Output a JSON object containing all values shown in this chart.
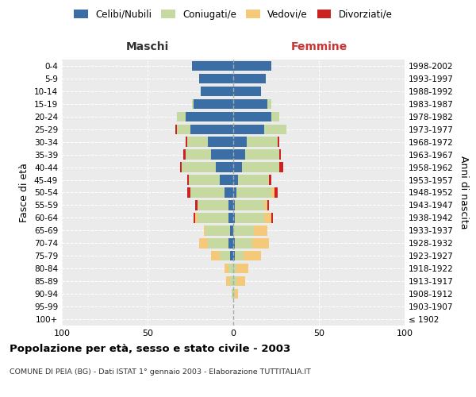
{
  "age_groups": [
    "100+",
    "95-99",
    "90-94",
    "85-89",
    "80-84",
    "75-79",
    "70-74",
    "65-69",
    "60-64",
    "55-59",
    "50-54",
    "45-49",
    "40-44",
    "35-39",
    "30-34",
    "25-29",
    "20-24",
    "15-19",
    "10-14",
    "5-9",
    "0-4"
  ],
  "birth_years": [
    "≤ 1902",
    "1903-1907",
    "1908-1912",
    "1913-1917",
    "1918-1922",
    "1923-1927",
    "1928-1932",
    "1933-1937",
    "1938-1942",
    "1943-1947",
    "1948-1952",
    "1953-1957",
    "1958-1962",
    "1963-1967",
    "1968-1972",
    "1973-1977",
    "1978-1982",
    "1983-1987",
    "1988-1992",
    "1993-1997",
    "1998-2002"
  ],
  "maschi": {
    "celibi": [
      0,
      0,
      0,
      0,
      0,
      2,
      3,
      2,
      3,
      3,
      5,
      8,
      10,
      13,
      15,
      25,
      28,
      23,
      19,
      20,
      24
    ],
    "coniugati": [
      0,
      0,
      1,
      2,
      3,
      6,
      12,
      14,
      18,
      18,
      20,
      18,
      20,
      15,
      12,
      8,
      5,
      1,
      0,
      0,
      0
    ],
    "vedovi": [
      0,
      0,
      0,
      2,
      2,
      5,
      5,
      1,
      1,
      0,
      0,
      0,
      0,
      0,
      0,
      0,
      0,
      0,
      0,
      0,
      0
    ],
    "divorziati": [
      0,
      0,
      0,
      0,
      0,
      0,
      0,
      0,
      1,
      1,
      2,
      1,
      1,
      1,
      1,
      1,
      0,
      0,
      0,
      0,
      0
    ]
  },
  "femmine": {
    "nubili": [
      0,
      0,
      0,
      0,
      0,
      1,
      1,
      0,
      1,
      1,
      2,
      3,
      5,
      7,
      8,
      18,
      22,
      20,
      16,
      19,
      22
    ],
    "coniugate": [
      0,
      0,
      1,
      2,
      2,
      5,
      10,
      12,
      17,
      17,
      20,
      18,
      22,
      20,
      18,
      13,
      5,
      2,
      0,
      0,
      0
    ],
    "vedove": [
      0,
      0,
      2,
      5,
      7,
      10,
      10,
      8,
      4,
      2,
      2,
      0,
      0,
      0,
      0,
      0,
      0,
      0,
      0,
      0,
      0
    ],
    "divorziate": [
      0,
      0,
      0,
      0,
      0,
      0,
      0,
      0,
      1,
      1,
      2,
      1,
      2,
      1,
      1,
      0,
      0,
      0,
      0,
      0,
      0
    ]
  },
  "colors": {
    "celibi_nubili": "#3a6ea5",
    "coniugati": "#c5d9a0",
    "vedovi": "#f5c97a",
    "divorziati": "#cc2222"
  },
  "title": "Popolazione per età, sesso e stato civile - 2003",
  "subtitle": "COMUNE DI PEIA (BG) - Dati ISTAT 1° gennaio 2003 - Elaborazione TUTTITALIA.IT",
  "xlabel_left": "Maschi",
  "xlabel_right": "Femmine",
  "ylabel_left": "Fasce di età",
  "ylabel_right": "Anni di nascita",
  "legend_labels": [
    "Celibi/Nubili",
    "Coniugati/e",
    "Vedovi/e",
    "Divorziati/e"
  ],
  "xlim": 100,
  "background_color": "#ffffff",
  "plot_bg_color": "#ebebeb"
}
